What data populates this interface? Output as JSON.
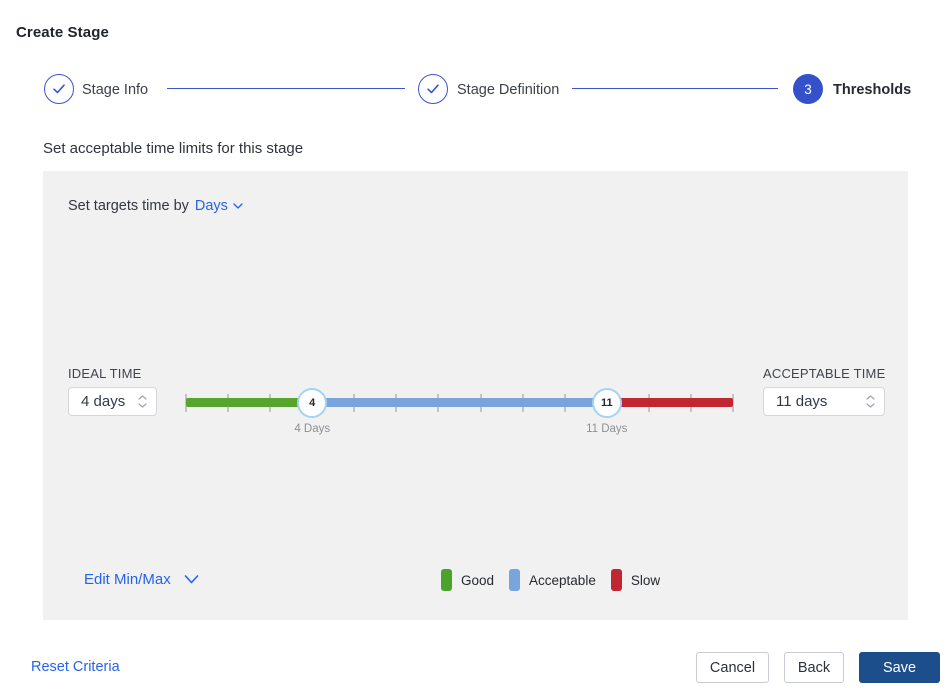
{
  "title": "Create Stage",
  "stepper": {
    "steps": [
      {
        "label": "Stage Info",
        "state": "complete"
      },
      {
        "label": "Stage Definition",
        "state": "complete"
      },
      {
        "label": "Thresholds",
        "state": "active",
        "number": "3"
      }
    ]
  },
  "section_title": "Set acceptable time limits for this stage",
  "panel": {
    "target_time_label": "Set targets time by",
    "target_time_unit": "Days",
    "ideal_time": {
      "label": "IDEAL TIME",
      "value": "4 days"
    },
    "acceptable_time": {
      "label": "ACCEPTABLE TIME",
      "value": "11 days"
    },
    "slider": {
      "min": 1,
      "max": 14,
      "ideal_value": 4,
      "acceptable_value": 11,
      "ideal_handle_label": "4",
      "acceptable_handle_label": "11",
      "ideal_caption": "4 Days",
      "acceptable_caption": "11 Days",
      "colors": {
        "good": "#57a52c",
        "acceptable": "#7aa4dc",
        "slow": "#c02730"
      }
    },
    "edit_minmax_label": "Edit Min/Max",
    "legend": [
      {
        "label": "Good",
        "color": "#4aa32b"
      },
      {
        "label": "Acceptable",
        "color": "#7aa4dc"
      },
      {
        "label": "Slow",
        "color": "#c02730"
      }
    ]
  },
  "footer": {
    "reset_label": "Reset Criteria",
    "cancel_label": "Cancel",
    "back_label": "Back",
    "save_label": "Save"
  },
  "colors": {
    "stepper_blue": "#3b55ce",
    "link_blue": "#2563eb",
    "save_bg": "#1d4e8c"
  }
}
